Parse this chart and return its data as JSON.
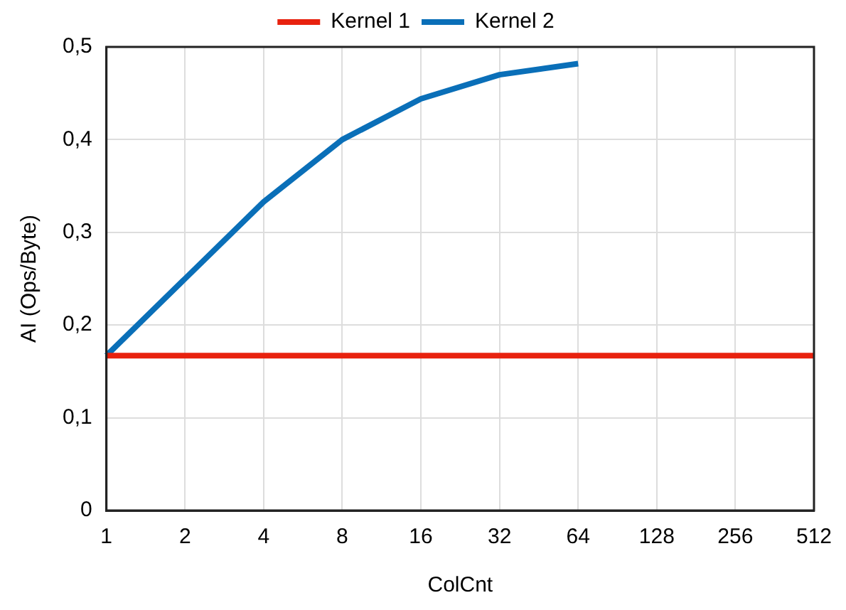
{
  "chart_data": {
    "type": "line",
    "xlabel": "ColCnt",
    "ylabel": "AI (Ops/Byte)",
    "categories": [
      "1",
      "2",
      "4",
      "8",
      "16",
      "32",
      "64",
      "128",
      "256",
      "512"
    ],
    "series": [
      {
        "name": "Kernel 1",
        "color": "#e8220f",
        "values": [
          0.167,
          0.167,
          0.167,
          0.167,
          0.167,
          0.167,
          0.167,
          0.167,
          0.167,
          0.167
        ]
      },
      {
        "name": "Kernel 2",
        "color": "#0a6fb8",
        "values": [
          0.167,
          0.25,
          0.333,
          0.4,
          0.444,
          0.47,
          0.482,
          null,
          null,
          null
        ]
      }
    ],
    "ylim": [
      0,
      0.5
    ],
    "yticks": [
      {
        "value": 0,
        "label": "0"
      },
      {
        "value": 0.1,
        "label": "0,1"
      },
      {
        "value": 0.2,
        "label": "0,2"
      },
      {
        "value": 0.3,
        "label": "0,3"
      },
      {
        "value": 0.4,
        "label": "0,4"
      },
      {
        "value": 0.5,
        "label": "0,5"
      }
    ],
    "grid": true,
    "legend": "top",
    "marker": "none",
    "line_style": "solid"
  }
}
